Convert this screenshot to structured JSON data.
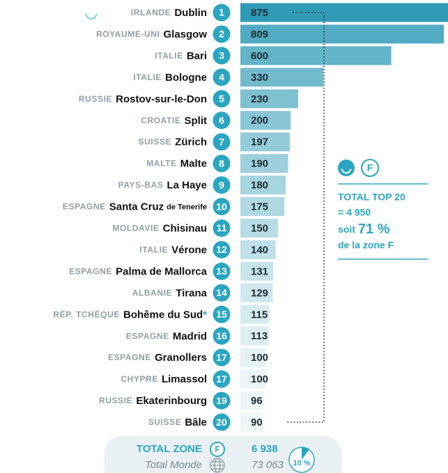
{
  "chart_data": {
    "type": "bar",
    "orientation": "horizontal",
    "categories": [
      "Dublin",
      "Glasgow",
      "Bari",
      "Bologne",
      "Rostov-sur-le-Don",
      "Split",
      "Zürich",
      "Malte",
      "La Haye",
      "Santa Cruz",
      "Chisinau",
      "Vérone",
      "Palma de Mallorca",
      "Tirana",
      "Bohême du Sud",
      "Madrid",
      "Granollers",
      "Limassol",
      "Ekaterinbourg",
      "Bâle"
    ],
    "countries": [
      "IRLANDE",
      "ROYAUME-UNI",
      "ITALIE",
      "ITALIE",
      "RUSSIE",
      "CROATIE",
      "SUISSE",
      "MALTE",
      "PAYS-BAS",
      "ESPAGNE",
      "MOLDAVIE",
      "ITALIE",
      "ESPAGNE",
      "ALBANIE",
      "RÉP. TCHÈQUE",
      "ESPAGNE",
      "ESPAGNE",
      "CHYPRE",
      "RUSSIE",
      "SUISSE"
    ],
    "category_suffixes": {
      "9": "de Tenerife"
    },
    "category_marks": {
      "14": "*"
    },
    "ranks": [
      "1",
      "2",
      "3",
      "4",
      "5",
      "6",
      "7",
      "8",
      "9",
      "10",
      "11",
      "12",
      "13",
      "14",
      "15",
      "16",
      "17",
      "17",
      "19",
      "20"
    ],
    "values": [
      875,
      809,
      600,
      330,
      230,
      200,
      197,
      190,
      180,
      175,
      150,
      140,
      131,
      129,
      115,
      113,
      100,
      100,
      96,
      90
    ],
    "color_range": [
      "#2f9bb6",
      "#eef6f8"
    ],
    "accent_color": "#2ba5c0",
    "side_box": {
      "zone_code": "F",
      "top20_label": "TOTAL TOP 20",
      "top20_value": {
        "value": 4950,
        "label": "= 4 950"
      },
      "share_prefix": "soit",
      "share": {
        "value": 71,
        "label": "71 %"
      },
      "share_suffix": "de la zone F"
    },
    "totals": {
      "zone_label": "TOTAL ZONE",
      "zone_code": "F",
      "zone_value": {
        "value": 6938,
        "label": "6 938"
      },
      "world_label": "Total Monde",
      "world_value": {
        "value": 73063,
        "label": "73 063"
      },
      "share": {
        "value": 10,
        "label": "10 %"
      }
    }
  }
}
